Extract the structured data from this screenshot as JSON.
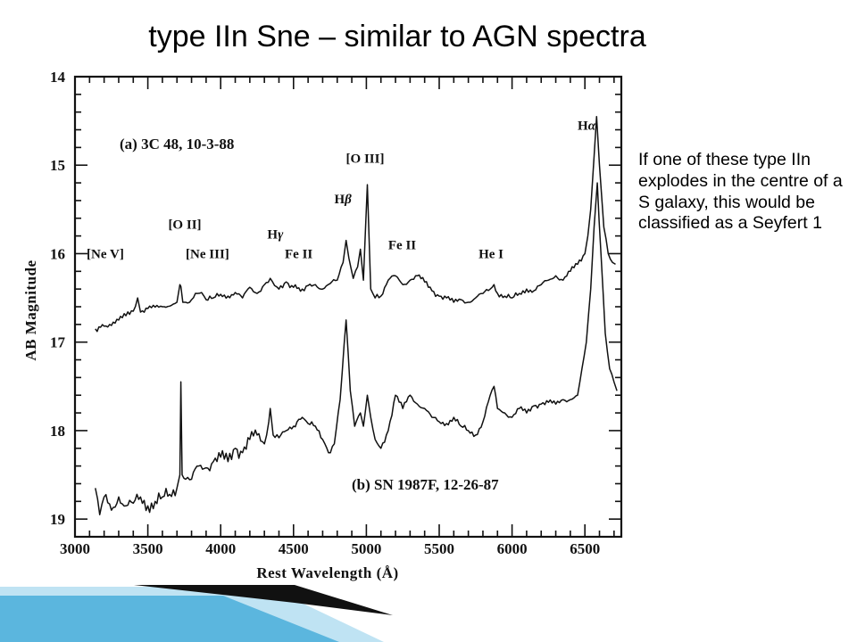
{
  "slide": {
    "title": "type IIn Sne – similar to AGN spectra",
    "note": "If one of these type IIn explodes in the centre of a S galaxy, this would be classified as a Seyfert 1"
  },
  "colors": {
    "ink": "#111111",
    "accent_dark": "#111111",
    "accent_blue": "#5bb6de",
    "accent_light": "#bfe3f3"
  },
  "chart_data": {
    "type": "line",
    "xlabel": "Rest Wavelength (Å)",
    "ylabel": "AB Magnitude",
    "xlim": [
      3000,
      6750
    ],
    "ylim": [
      14,
      19.2
    ],
    "y_inverted": true,
    "x_ticks": [
      3000,
      3500,
      4000,
      4500,
      5000,
      5500,
      6000,
      6500
    ],
    "y_ticks": [
      14,
      15,
      16,
      17,
      18,
      19
    ],
    "grid": false,
    "series": [
      {
        "name": "(a) 3C 48, 10-3-88",
        "x": [
          3140,
          3200,
          3300,
          3400,
          3430,
          3450,
          3500,
          3600,
          3700,
          3720,
          3727,
          3740,
          3760,
          3800,
          3840,
          3869,
          3900,
          3950,
          4000,
          4050,
          4100,
          4150,
          4200,
          4250,
          4300,
          4340,
          4370,
          4400,
          4450,
          4500,
          4560,
          4600,
          4650,
          4700,
          4750,
          4800,
          4840,
          4861,
          4880,
          4910,
          4940,
          4959,
          4980,
          5007,
          5030,
          5060,
          5100,
          5150,
          5200,
          5250,
          5300,
          5350,
          5400,
          5450,
          5500,
          5550,
          5600,
          5650,
          5700,
          5750,
          5800,
          5850,
          5876,
          5900,
          5950,
          6000,
          6050,
          6100,
          6150,
          6200,
          6250,
          6300,
          6350,
          6400,
          6450,
          6500,
          6520,
          6540,
          6563,
          6580,
          6600,
          6630,
          6660,
          6690,
          6710
        ],
        "values": [
          16.85,
          16.82,
          16.75,
          16.65,
          16.5,
          16.66,
          16.62,
          16.6,
          16.55,
          16.35,
          16.37,
          16.55,
          16.55,
          16.52,
          16.45,
          16.44,
          16.52,
          16.5,
          16.46,
          16.48,
          16.44,
          16.5,
          16.38,
          16.45,
          16.35,
          16.28,
          16.36,
          16.4,
          16.32,
          16.38,
          16.4,
          16.36,
          16.35,
          16.4,
          16.34,
          16.3,
          16.1,
          15.85,
          16.05,
          16.28,
          16.15,
          15.95,
          16.3,
          15.22,
          16.4,
          16.5,
          16.48,
          16.3,
          16.25,
          16.35,
          16.3,
          16.25,
          16.32,
          16.42,
          16.48,
          16.5,
          16.55,
          16.52,
          16.55,
          16.5,
          16.45,
          16.4,
          16.35,
          16.45,
          16.48,
          16.5,
          16.45,
          16.4,
          16.42,
          16.35,
          16.3,
          16.25,
          16.3,
          16.2,
          16.12,
          16.0,
          15.8,
          15.5,
          14.9,
          14.45,
          15.0,
          15.7,
          16.0,
          16.1,
          16.12
        ]
      },
      {
        "name": "(b) SN 1987F, 12-26-87",
        "x": [
          3140,
          3170,
          3200,
          3250,
          3300,
          3350,
          3400,
          3450,
          3500,
          3550,
          3600,
          3650,
          3700,
          3720,
          3727,
          3735,
          3760,
          3800,
          3850,
          3900,
          3950,
          4000,
          4050,
          4100,
          4150,
          4200,
          4250,
          4300,
          4330,
          4340,
          4360,
          4400,
          4450,
          4500,
          4560,
          4600,
          4650,
          4700,
          4740,
          4780,
          4820,
          4861,
          4890,
          4920,
          4959,
          4980,
          5007,
          5030,
          5060,
          5100,
          5150,
          5200,
          5250,
          5300,
          5350,
          5400,
          5450,
          5500,
          5550,
          5600,
          5650,
          5700,
          5750,
          5800,
          5850,
          5876,
          5900,
          5950,
          6000,
          6050,
          6100,
          6150,
          6200,
          6250,
          6300,
          6350,
          6400,
          6450,
          6480,
          6510,
          6540,
          6563,
          6585,
          6610,
          6640,
          6670,
          6700,
          6720
        ],
        "values": [
          18.65,
          18.95,
          18.75,
          18.9,
          18.75,
          18.85,
          18.82,
          18.75,
          18.85,
          18.8,
          18.75,
          18.72,
          18.65,
          18.5,
          17.45,
          18.5,
          18.55,
          18.55,
          18.4,
          18.42,
          18.35,
          18.3,
          18.35,
          18.2,
          18.25,
          18.1,
          18.05,
          18.15,
          17.9,
          17.75,
          18.05,
          18.08,
          18.0,
          17.95,
          17.85,
          17.92,
          17.95,
          18.1,
          18.25,
          18.15,
          17.65,
          16.75,
          17.55,
          17.95,
          17.8,
          17.95,
          17.6,
          17.85,
          18.1,
          18.2,
          18.0,
          17.6,
          17.75,
          17.6,
          17.7,
          17.75,
          17.85,
          17.9,
          17.92,
          17.85,
          17.95,
          18.0,
          18.05,
          17.9,
          17.6,
          17.5,
          17.75,
          17.8,
          17.85,
          17.75,
          17.8,
          17.72,
          17.7,
          17.68,
          17.7,
          17.65,
          17.65,
          17.6,
          17.3,
          17.0,
          16.4,
          15.7,
          15.2,
          16.0,
          16.9,
          17.3,
          17.45,
          17.55
        ]
      }
    ],
    "annotations": [
      {
        "text": "Ha",
        "x": 6450,
        "y": 14.6
      },
      {
        "text": "[O III]",
        "x": 4860,
        "y": 14.97
      },
      {
        "text": "Hb",
        "x": 4780,
        "y": 15.43
      },
      {
        "text": "[O II]",
        "x": 3640,
        "y": 15.72
      },
      {
        "text": "Hg",
        "x": 4320,
        "y": 15.83
      },
      {
        "text": "[Ne V]",
        "x": 3080,
        "y": 16.05
      },
      {
        "text": "[Ne III]",
        "x": 3760,
        "y": 16.05
      },
      {
        "text": "Fe II",
        "x": 4440,
        "y": 16.05
      },
      {
        "text": "Fe II",
        "x": 5150,
        "y": 15.95
      },
      {
        "text": "He I",
        "x": 5770,
        "y": 16.05
      }
    ]
  }
}
